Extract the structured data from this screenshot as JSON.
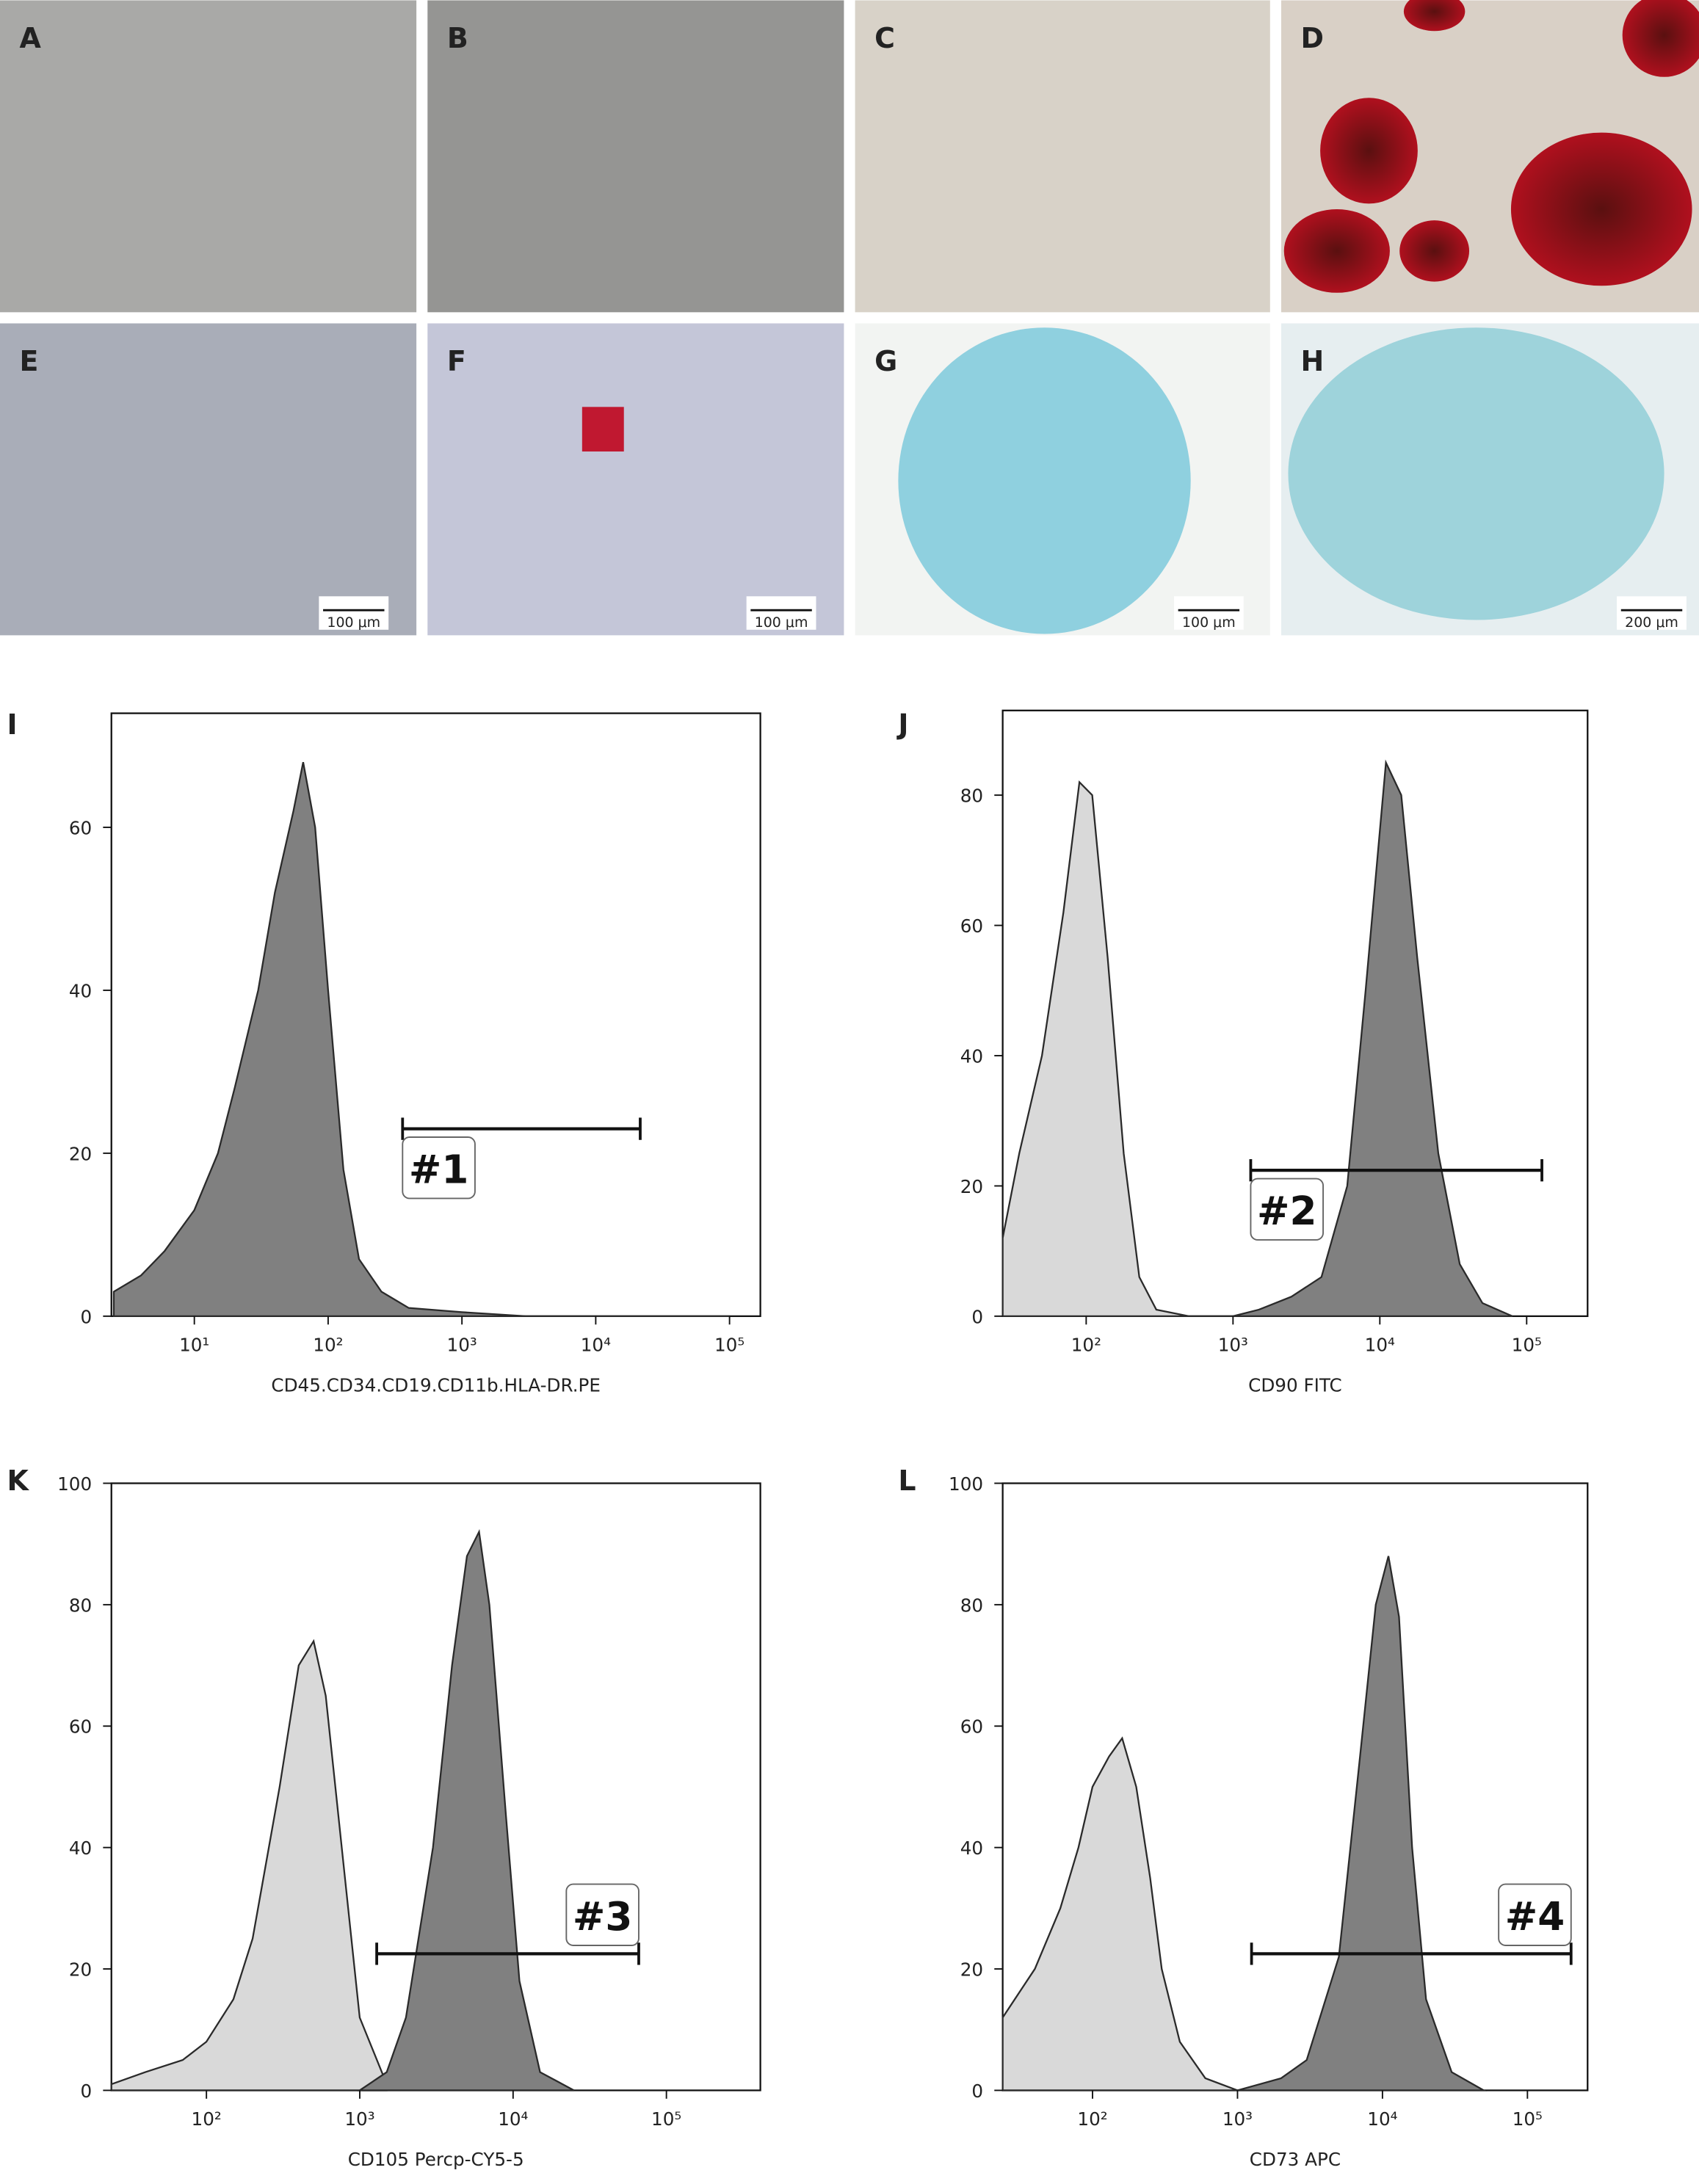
{
  "photos": [
    {
      "label": "A"
    },
    {
      "label": "B"
    },
    {
      "label": "C"
    },
    {
      "label": "D"
    },
    {
      "label": "E",
      "scale_bar": "100 μm"
    },
    {
      "label": "F",
      "scale_bar": "100 μm"
    },
    {
      "label": "G",
      "scale_bar": "100 μm"
    },
    {
      "label": "H",
      "scale_bar": "200 μm"
    }
  ],
  "chart_data": [
    {
      "type": "area",
      "panel": "I",
      "xlabel": "CD45.CD34.CD19.CD11b.HLA-DR.PE",
      "xscale": "log",
      "xlim": [
        2.4,
        170000
      ],
      "ylim": [
        0,
        74
      ],
      "xticks": [
        {
          "value": 10,
          "label": "10¹"
        },
        {
          "value": 100,
          "label": "10²"
        },
        {
          "value": 1000,
          "label": "10³"
        },
        {
          "value": 10000,
          "label": "10⁴"
        },
        {
          "value": 100000,
          "label": "10⁵"
        }
      ],
      "yticks": [
        0,
        20,
        40,
        60
      ],
      "series": [
        {
          "color": "#808080",
          "x": [
            2.5,
            4,
            6,
            10,
            15,
            20,
            30,
            40,
            55,
            65,
            80,
            100,
            130,
            170,
            250,
            400,
            1000,
            3000,
            100000
          ],
          "values": [
            3,
            5,
            8,
            13,
            20,
            28,
            40,
            52,
            62,
            68,
            60,
            40,
            18,
            7,
            3,
            1,
            0.5,
            0,
            0
          ]
        }
      ],
      "gate": {
        "label": "#1",
        "x": [
          360,
          21500
        ],
        "y": 23
      }
    },
    {
      "type": "area",
      "panel": "J",
      "xlabel": "CD90 FITC",
      "xscale": "log",
      "xlim": [
        27,
        260000
      ],
      "ylim": [
        0,
        93
      ],
      "xticks": [
        {
          "value": 100,
          "label": "10²"
        },
        {
          "value": 1000,
          "label": "10³"
        },
        {
          "value": 10000,
          "label": "10⁴"
        },
        {
          "value": 100000,
          "label": "10⁵"
        }
      ],
      "yticks": [
        0,
        20,
        40,
        60,
        80
      ],
      "series": [
        {
          "color": "#d9d9d9",
          "x": [
            27,
            35,
            50,
            70,
            90,
            110,
            140,
            180,
            230,
            300,
            500,
            1000
          ],
          "values": [
            12,
            25,
            40,
            62,
            82,
            80,
            55,
            25,
            6,
            1,
            0,
            0
          ]
        },
        {
          "color": "#808080",
          "x": [
            1000,
            1500,
            2500,
            4000,
            6000,
            8000,
            11000,
            14000,
            18000,
            25000,
            35000,
            50000,
            80000
          ],
          "values": [
            0,
            1,
            3,
            6,
            20,
            50,
            85,
            80,
            55,
            25,
            8,
            2,
            0
          ]
        }
      ],
      "gate": {
        "label": "#2",
        "x": [
          1320,
          127000
        ],
        "y": 22.4
      }
    },
    {
      "type": "area",
      "panel": "K",
      "xlabel": "CD105 Percp-CY5-5",
      "xscale": "log",
      "xlim": [
        24,
        410000
      ],
      "ylim": [
        0,
        100
      ],
      "xticks": [
        {
          "value": 100,
          "label": "10²"
        },
        {
          "value": 1000,
          "label": "10³"
        },
        {
          "value": 10000,
          "label": "10⁴"
        },
        {
          "value": 100000,
          "label": "10⁵"
        }
      ],
      "yticks": [
        0,
        20,
        40,
        60,
        80,
        100
      ],
      "series": [
        {
          "color": "#d9d9d9",
          "x": [
            24,
            40,
            70,
            100,
            150,
            200,
            300,
            400,
            500,
            600,
            800,
            1000,
            1500
          ],
          "values": [
            1,
            3,
            5,
            8,
            15,
            25,
            50,
            70,
            74,
            65,
            35,
            12,
            1
          ]
        },
        {
          "color": "#808080",
          "x": [
            1000,
            1500,
            2000,
            3000,
            4000,
            5000,
            6000,
            7000,
            9000,
            11000,
            15000,
            25000
          ],
          "values": [
            0,
            3,
            12,
            40,
            70,
            88,
            92,
            80,
            45,
            18,
            3,
            0
          ]
        }
      ],
      "gate": {
        "label": "#3",
        "x": [
          1290,
          66000
        ],
        "y": 22.5
      }
    },
    {
      "type": "area",
      "panel": "L",
      "xlabel": "CD73 APC",
      "xscale": "log",
      "xlim": [
        24,
        260000
      ],
      "ylim": [
        0,
        100
      ],
      "xticks": [
        {
          "value": 100,
          "label": "10²"
        },
        {
          "value": 1000,
          "label": "10³"
        },
        {
          "value": 10000,
          "label": "10⁴"
        },
        {
          "value": 100000,
          "label": "10⁵"
        }
      ],
      "yticks": [
        0,
        20,
        40,
        60,
        80,
        100
      ],
      "series": [
        {
          "color": "#d9d9d9",
          "x": [
            24,
            40,
            60,
            80,
            100,
            130,
            160,
            200,
            250,
            300,
            400,
            600,
            1000
          ],
          "values": [
            12,
            20,
            30,
            40,
            50,
            55,
            58,
            50,
            35,
            20,
            8,
            2,
            0
          ]
        },
        {
          "color": "#808080",
          "x": [
            1000,
            2000,
            3000,
            5000,
            7000,
            9000,
            11000,
            13000,
            16000,
            20000,
            30000,
            50000
          ],
          "values": [
            0,
            2,
            5,
            22,
            55,
            80,
            88,
            78,
            40,
            15,
            3,
            0
          ]
        }
      ],
      "gate": {
        "label": "#4",
        "x": [
          1250,
          200000
        ],
        "y": 22.5
      }
    }
  ]
}
